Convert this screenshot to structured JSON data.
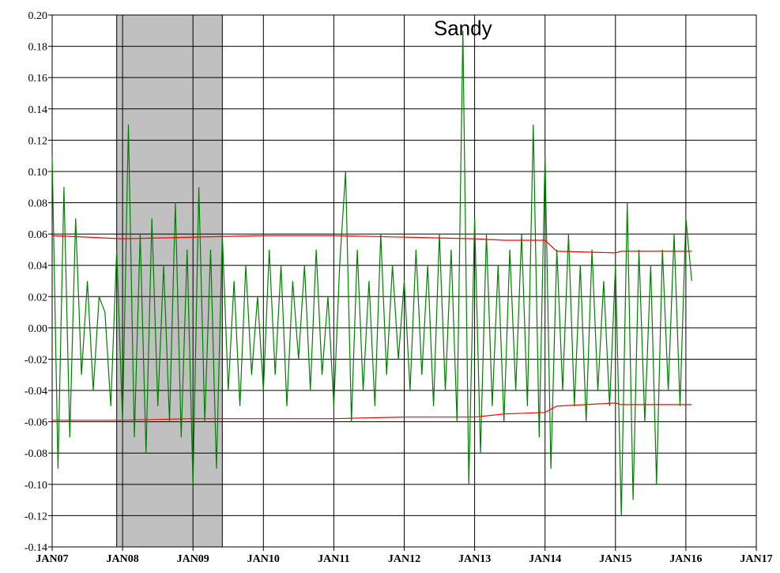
{
  "chart_data": {
    "type": "line",
    "annotations": [
      {
        "text": "Sandy",
        "x": "2012-11",
        "y": 0.187
      }
    ],
    "shaded": [
      {
        "start": "2007-12",
        "end": "2009-06",
        "color": "#c0c0c0"
      }
    ],
    "xlim": [
      "2007-01",
      "2017-01"
    ],
    "xticks": [
      {
        "value": "2007-01",
        "label": "JAN07"
      },
      {
        "value": "2008-01",
        "label": "JAN08"
      },
      {
        "value": "2009-01",
        "label": "JAN09"
      },
      {
        "value": "2010-01",
        "label": "JAN10"
      },
      {
        "value": "2011-01",
        "label": "JAN11"
      },
      {
        "value": "2012-01",
        "label": "JAN12"
      },
      {
        "value": "2013-01",
        "label": "JAN13"
      },
      {
        "value": "2014-01",
        "label": "JAN14"
      },
      {
        "value": "2015-01",
        "label": "JAN15"
      },
      {
        "value": "2016-01",
        "label": "JAN16"
      },
      {
        "value": "2017-01",
        "label": "JAN17"
      }
    ],
    "ylim": [
      -0.14,
      0.2
    ],
    "yticks": [
      {
        "value": -0.14,
        "label": "-0.14"
      },
      {
        "value": -0.12,
        "label": "-0.12"
      },
      {
        "value": -0.1,
        "label": "-0.10"
      },
      {
        "value": -0.08,
        "label": "-0.08"
      },
      {
        "value": -0.06,
        "label": "-0.06"
      },
      {
        "value": -0.04,
        "label": "-0.04"
      },
      {
        "value": -0.02,
        "label": "-0.02"
      },
      {
        "value": 0,
        "label": "0.00"
      },
      {
        "value": 0.02,
        "label": "0.02"
      },
      {
        "value": 0.04,
        "label": "0.04"
      },
      {
        "value": 0.06,
        "label": "0.06"
      },
      {
        "value": 0.08,
        "label": "0.08"
      },
      {
        "value": 0.1,
        "label": "0.10"
      },
      {
        "value": 0.12,
        "label": "0.12"
      },
      {
        "value": 0.14,
        "label": "0.14"
      },
      {
        "value": 0.16,
        "label": "0.16"
      },
      {
        "value": 0.18,
        "label": "0.18"
      },
      {
        "value": 0.2,
        "label": "0.20"
      }
    ],
    "grid": true,
    "series": [
      {
        "color": "#008000",
        "x": [
          "2007-01",
          "2007-02",
          "2007-03",
          "2007-04",
          "2007-05",
          "2007-06",
          "2007-07",
          "2007-08",
          "2007-09",
          "2007-10",
          "2007-11",
          "2007-12",
          "2008-01",
          "2008-02",
          "2008-03",
          "2008-04",
          "2008-05",
          "2008-06",
          "2008-07",
          "2008-08",
          "2008-09",
          "2008-10",
          "2008-11",
          "2008-12",
          "2009-01",
          "2009-02",
          "2009-03",
          "2009-04",
          "2009-05",
          "2009-06",
          "2009-07",
          "2009-08",
          "2009-09",
          "2009-10",
          "2009-11",
          "2009-12",
          "2010-01",
          "2010-02",
          "2010-03",
          "2010-04",
          "2010-05",
          "2010-06",
          "2010-07",
          "2010-08",
          "2010-09",
          "2010-10",
          "2010-11",
          "2010-12",
          "2011-01",
          "2011-02",
          "2011-03",
          "2011-04",
          "2011-05",
          "2011-06",
          "2011-07",
          "2011-08",
          "2011-09",
          "2011-10",
          "2011-11",
          "2011-12",
          "2012-01",
          "2012-02",
          "2012-03",
          "2012-04",
          "2012-05",
          "2012-06",
          "2012-07",
          "2012-08",
          "2012-09",
          "2012-10",
          "2012-11",
          "2012-12",
          "2013-01",
          "2013-02",
          "2013-03",
          "2013-04",
          "2013-05",
          "2013-06",
          "2013-07",
          "2013-08",
          "2013-09",
          "2013-10",
          "2013-11",
          "2013-12",
          "2014-01",
          "2014-02",
          "2014-03",
          "2014-04",
          "2014-05",
          "2014-06",
          "2014-07",
          "2014-08",
          "2014-09",
          "2014-10",
          "2014-11",
          "2014-12",
          "2015-01",
          "2015-02",
          "2015-03",
          "2015-04",
          "2015-05",
          "2015-06",
          "2015-07",
          "2015-08",
          "2015-09",
          "2015-10",
          "2015-11",
          "2015-12",
          "2016-01",
          "2016-02"
        ],
        "values": [
          0.11,
          -0.09,
          0.09,
          -0.07,
          0.07,
          -0.03,
          0.03,
          -0.04,
          0.02,
          0.01,
          -0.05,
          0.05,
          -0.06,
          0.13,
          -0.07,
          0.06,
          -0.08,
          0.07,
          -0.05,
          0.04,
          -0.06,
          0.08,
          -0.07,
          0.05,
          -0.1,
          0.09,
          -0.06,
          0.05,
          -0.09,
          0.06,
          -0.04,
          0.03,
          -0.05,
          0.04,
          -0.03,
          0.02,
          -0.04,
          0.05,
          -0.03,
          0.04,
          -0.05,
          0.03,
          -0.02,
          0.04,
          -0.04,
          0.05,
          -0.03,
          0.02,
          -0.05,
          0.04,
          0.1,
          -0.06,
          0.05,
          -0.04,
          0.03,
          -0.05,
          0.06,
          -0.03,
          0.04,
          -0.02,
          0.03,
          -0.04,
          0.05,
          -0.03,
          0.04,
          -0.05,
          0.06,
          -0.04,
          0.05,
          -0.06,
          0.19,
          -0.1,
          0.07,
          -0.08,
          0.06,
          -0.05,
          0.04,
          -0.06,
          0.05,
          -0.04,
          0.06,
          -0.05,
          0.13,
          -0.07,
          0.11,
          -0.09,
          0.05,
          -0.04,
          0.06,
          -0.05,
          0.04,
          -0.06,
          0.05,
          -0.04,
          0.03,
          -0.05,
          0.04,
          -0.12,
          0.08,
          -0.11,
          0.05,
          -0.06,
          0.04,
          -0.1,
          0.05,
          -0.04,
          0.06,
          -0.05,
          0.07,
          0.03
        ]
      },
      {
        "color": "#ff0000",
        "x": [
          "2007-01",
          "2008-01",
          "2009-01",
          "2010-01",
          "2011-01",
          "2012-01",
          "2013-01",
          "2013-06",
          "2014-01",
          "2014-03",
          "2015-01",
          "2015-02",
          "2016-02"
        ],
        "values": [
          0.059,
          0.057,
          0.058,
          0.059,
          0.059,
          0.058,
          0.057,
          0.056,
          0.056,
          0.049,
          0.048,
          0.049,
          0.049
        ]
      },
      {
        "color": "#ff0000",
        "x": [
          "2007-01",
          "2008-01",
          "2009-01",
          "2010-01",
          "2011-01",
          "2012-01",
          "2013-01",
          "2013-06",
          "2014-01",
          "2014-03",
          "2015-01",
          "2015-02",
          "2016-02"
        ],
        "values": [
          -0.059,
          -0.059,
          -0.058,
          -0.058,
          -0.058,
          -0.057,
          -0.057,
          -0.055,
          -0.054,
          -0.05,
          -0.048,
          -0.049,
          -0.049
        ]
      }
    ]
  }
}
